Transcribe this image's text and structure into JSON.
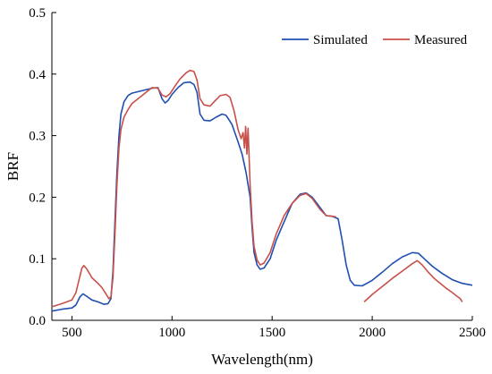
{
  "chart_data": {
    "type": "line",
    "xlabel": "Wavelength(nm)",
    "ylabel": "BRF",
    "xlim": [
      400,
      2500
    ],
    "ylim": [
      0,
      0.5
    ],
    "x_ticks": [
      500,
      1000,
      1500,
      2000,
      2500
    ],
    "y_ticks": [
      0.0,
      0.1,
      0.2,
      0.3,
      0.4,
      0.5
    ],
    "y_tick_labels": [
      "0.0",
      "0.1",
      "0.2",
      "0.3",
      "0.4",
      "0.5"
    ],
    "grid": false,
    "legend_position": "top-right",
    "series": [
      {
        "name": "Simulated",
        "color": "#1f4fb0",
        "segments": [
          [
            [
              400,
              0.015
            ],
            [
              450,
              0.018
            ],
            [
              500,
              0.02
            ],
            [
              520,
              0.025
            ],
            [
              540,
              0.038
            ],
            [
              555,
              0.043
            ],
            [
              570,
              0.04
            ],
            [
              600,
              0.033
            ],
            [
              630,
              0.03
            ],
            [
              660,
              0.026
            ],
            [
              680,
              0.027
            ],
            [
              695,
              0.035
            ],
            [
              705,
              0.08
            ],
            [
              715,
              0.16
            ],
            [
              725,
              0.24
            ],
            [
              735,
              0.3
            ],
            [
              745,
              0.335
            ],
            [
              760,
              0.355
            ],
            [
              780,
              0.365
            ],
            [
              800,
              0.369
            ],
            [
              850,
              0.373
            ],
            [
              900,
              0.377
            ],
            [
              930,
              0.378
            ],
            [
              950,
              0.36
            ],
            [
              965,
              0.353
            ],
            [
              980,
              0.357
            ],
            [
              1000,
              0.367
            ],
            [
              1030,
              0.378
            ],
            [
              1060,
              0.386
            ],
            [
              1090,
              0.387
            ],
            [
              1110,
              0.383
            ],
            [
              1125,
              0.37
            ],
            [
              1140,
              0.335
            ],
            [
              1160,
              0.325
            ],
            [
              1190,
              0.324
            ],
            [
              1220,
              0.33
            ],
            [
              1250,
              0.335
            ],
            [
              1270,
              0.333
            ],
            [
              1300,
              0.318
            ],
            [
              1330,
              0.29
            ],
            [
              1350,
              0.27
            ],
            [
              1370,
              0.24
            ],
            [
              1390,
              0.2
            ],
            [
              1400,
              0.15
            ],
            [
              1410,
              0.11
            ],
            [
              1425,
              0.09
            ],
            [
              1440,
              0.083
            ],
            [
              1460,
              0.085
            ],
            [
              1490,
              0.1
            ],
            [
              1520,
              0.13
            ],
            [
              1560,
              0.16
            ],
            [
              1600,
              0.19
            ],
            [
              1640,
              0.205
            ],
            [
              1670,
              0.207
            ],
            [
              1700,
              0.2
            ],
            [
              1740,
              0.183
            ],
            [
              1770,
              0.17
            ],
            [
              1800,
              0.169
            ],
            [
              1830,
              0.165
            ],
            [
              1850,
              0.13
            ],
            [
              1870,
              0.09
            ],
            [
              1890,
              0.065
            ],
            [
              1910,
              0.057
            ],
            [
              1950,
              0.056
            ],
            [
              2000,
              0.065
            ],
            [
              2050,
              0.078
            ],
            [
              2100,
              0.092
            ],
            [
              2150,
              0.103
            ],
            [
              2200,
              0.11
            ],
            [
              2230,
              0.109
            ],
            [
              2260,
              0.1
            ],
            [
              2300,
              0.088
            ],
            [
              2350,
              0.076
            ],
            [
              2400,
              0.066
            ],
            [
              2450,
              0.06
            ],
            [
              2500,
              0.057
            ]
          ]
        ]
      },
      {
        "name": "Measured",
        "color": "#c8504a",
        "segments": [
          [
            [
              400,
              0.022
            ],
            [
              450,
              0.027
            ],
            [
              500,
              0.033
            ],
            [
              520,
              0.045
            ],
            [
              535,
              0.065
            ],
            [
              550,
              0.085
            ],
            [
              560,
              0.089
            ],
            [
              575,
              0.083
            ],
            [
              600,
              0.069
            ],
            [
              630,
              0.06
            ],
            [
              650,
              0.053
            ],
            [
              670,
              0.043
            ],
            [
              685,
              0.035
            ],
            [
              695,
              0.038
            ],
            [
              705,
              0.07
            ],
            [
              715,
              0.14
            ],
            [
              725,
              0.22
            ],
            [
              735,
              0.28
            ],
            [
              745,
              0.31
            ],
            [
              760,
              0.33
            ],
            [
              780,
              0.342
            ],
            [
              800,
              0.352
            ],
            [
              850,
              0.365
            ],
            [
              900,
              0.378
            ],
            [
              930,
              0.377
            ],
            [
              950,
              0.366
            ],
            [
              970,
              0.363
            ],
            [
              990,
              0.368
            ],
            [
              1010,
              0.378
            ],
            [
              1040,
              0.392
            ],
            [
              1070,
              0.402
            ],
            [
              1090,
              0.406
            ],
            [
              1110,
              0.404
            ],
            [
              1125,
              0.39
            ],
            [
              1140,
              0.36
            ],
            [
              1160,
              0.35
            ],
            [
              1190,
              0.348
            ],
            [
              1210,
              0.355
            ],
            [
              1240,
              0.365
            ],
            [
              1270,
              0.367
            ],
            [
              1290,
              0.362
            ],
            [
              1310,
              0.34
            ],
            [
              1330,
              0.31
            ],
            [
              1345,
              0.295
            ],
            [
              1355,
              0.305
            ],
            [
              1362,
              0.28
            ],
            [
              1368,
              0.315
            ],
            [
              1374,
              0.27
            ],
            [
              1380,
              0.312
            ],
            [
              1390,
              0.22
            ],
            [
              1400,
              0.16
            ],
            [
              1410,
              0.12
            ],
            [
              1425,
              0.098
            ],
            [
              1440,
              0.09
            ],
            [
              1460,
              0.093
            ],
            [
              1490,
              0.11
            ],
            [
              1520,
              0.14
            ],
            [
              1560,
              0.17
            ],
            [
              1600,
              0.19
            ],
            [
              1640,
              0.203
            ],
            [
              1670,
              0.206
            ],
            [
              1700,
              0.198
            ],
            [
              1740,
              0.18
            ],
            [
              1770,
              0.17
            ],
            [
              1800,
              0.169
            ],
            [
              1820,
              0.168
            ]
          ],
          [
            [
              1960,
              0.03
            ],
            [
              2000,
              0.042
            ],
            [
              2050,
              0.055
            ],
            [
              2100,
              0.068
            ],
            [
              2150,
              0.08
            ],
            [
              2200,
              0.092
            ],
            [
              2225,
              0.097
            ],
            [
              2250,
              0.09
            ],
            [
              2280,
              0.078
            ],
            [
              2310,
              0.068
            ],
            [
              2340,
              0.06
            ],
            [
              2370,
              0.052
            ],
            [
              2400,
              0.045
            ],
            [
              2420,
              0.04
            ],
            [
              2440,
              0.035
            ],
            [
              2450,
              0.03
            ]
          ]
        ]
      }
    ]
  }
}
